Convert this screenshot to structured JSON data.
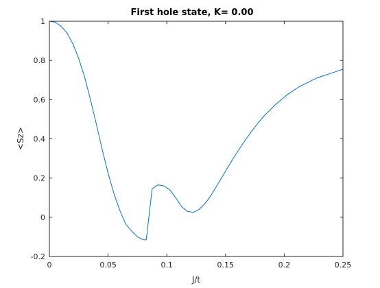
{
  "chart_data": {
    "type": "line",
    "title": "First hole state, K= 0.00",
    "xlabel": "J/t",
    "ylabel": "<Sz>",
    "xlim": [
      0,
      0.25
    ],
    "ylim": [
      -0.2,
      1
    ],
    "xticks": [
      0,
      0.05,
      0.1,
      0.15,
      0.2,
      0.25
    ],
    "xtick_labels": [
      "0",
      "0.05",
      "0.1",
      "0.15",
      "0.2",
      "0.25"
    ],
    "yticks": [
      -0.2,
      0,
      0.2,
      0.4,
      0.6,
      0.8,
      1
    ],
    "ytick_labels": [
      "-0.2",
      "0",
      "0.2",
      "0.4",
      "0.6",
      "0.8",
      "1"
    ],
    "grid": false,
    "box": true,
    "series": [
      {
        "color": "#0072BD",
        "x": [
          0,
          0.005,
          0.01,
          0.015,
          0.02,
          0.025,
          0.03,
          0.035,
          0.04,
          0.045,
          0.05,
          0.055,
          0.06,
          0.065,
          0.07,
          0.075,
          0.08,
          0.0825,
          0.0875,
          0.0925,
          0.0975,
          0.1025,
          0.1075,
          0.1125,
          0.1175,
          0.1225,
          0.1275,
          0.1325,
          0.1375,
          0.1425,
          0.1475,
          0.1525,
          0.1575,
          0.1625,
          0.1675,
          0.1725,
          0.1775,
          0.1825,
          0.1875,
          0.1925,
          0.1975,
          0.2025,
          0.2075,
          0.2125,
          0.2175,
          0.2225,
          0.2275,
          0.2325,
          0.2375,
          0.2425,
          0.25
        ],
        "y": [
          1.0,
          0.995,
          0.975,
          0.94,
          0.885,
          0.81,
          0.715,
          0.6,
          0.475,
          0.345,
          0.225,
          0.12,
          0.035,
          -0.035,
          -0.07,
          -0.1,
          -0.115,
          -0.115,
          0.145,
          0.165,
          0.16,
          0.14,
          0.1,
          0.055,
          0.03,
          0.025,
          0.04,
          0.07,
          0.11,
          0.16,
          0.21,
          0.26,
          0.31,
          0.355,
          0.4,
          0.44,
          0.48,
          0.515,
          0.545,
          0.575,
          0.6,
          0.625,
          0.645,
          0.665,
          0.68,
          0.695,
          0.71,
          0.72,
          0.73,
          0.74,
          0.755
        ]
      }
    ]
  }
}
